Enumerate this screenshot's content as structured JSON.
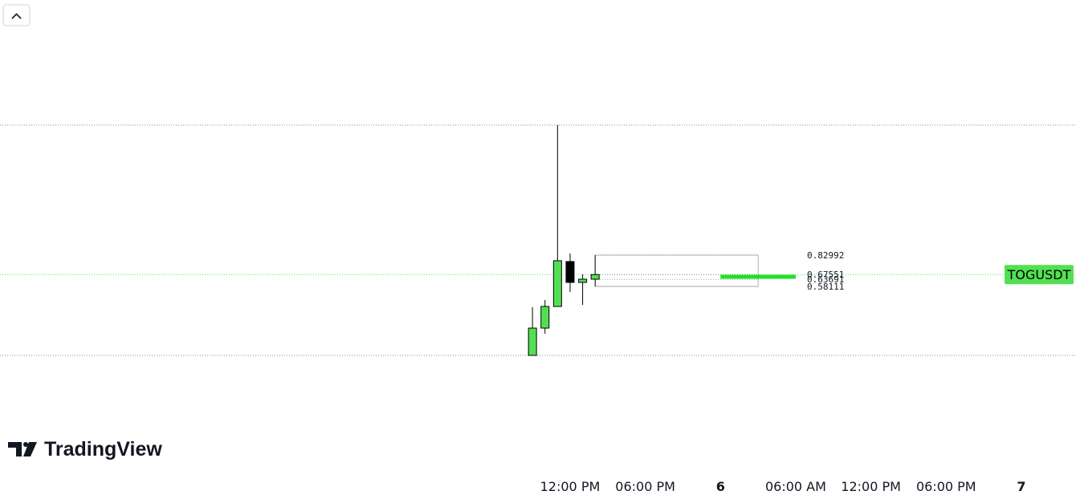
{
  "chart_data": {
    "type": "candlestick",
    "symbol": "TOGUSDT",
    "brand": "TradingView",
    "x": [
      -3,
      -2,
      -1,
      0,
      1,
      2
    ],
    "open": [
      0.0324,
      0.2493,
      0.4216,
      0.7789,
      0.613,
      0.6385
    ],
    "high": [
      0.4152,
      0.4726,
      1.8635,
      0.8427,
      0.6768,
      0.8299
    ],
    "low": [
      0.0324,
      0.2047,
      0.4216,
      0.5364,
      0.4344,
      0.5811
    ],
    "close": [
      0.2493,
      0.4216,
      0.7853,
      0.613,
      0.6385,
      0.6755
    ],
    "up_color": "#52e052",
    "down_color": "#000000",
    "xlim": [
      -45.48,
      40.36
    ],
    "ylim": [
      -0.8417,
      2.8588
    ],
    "xticks": [
      {
        "value": 0,
        "label": "12:00 PM"
      },
      {
        "value": 6,
        "label": "06:00 PM"
      },
      {
        "value": 12,
        "label": "6"
      },
      {
        "value": 18,
        "label": "06:00 AM"
      },
      {
        "value": 24,
        "label": "12:00 PM"
      },
      {
        "value": 30,
        "label": "06:00 PM"
      },
      {
        "value": 36,
        "label": "7"
      }
    ],
    "range_box": {
      "x": [
        2,
        15
      ],
      "levels": [
        0.82992,
        0.67551,
        0.63691,
        0.58111
      ],
      "bar_x": [
        12,
        18
      ],
      "bar_value": 0.6577
    }
  }
}
